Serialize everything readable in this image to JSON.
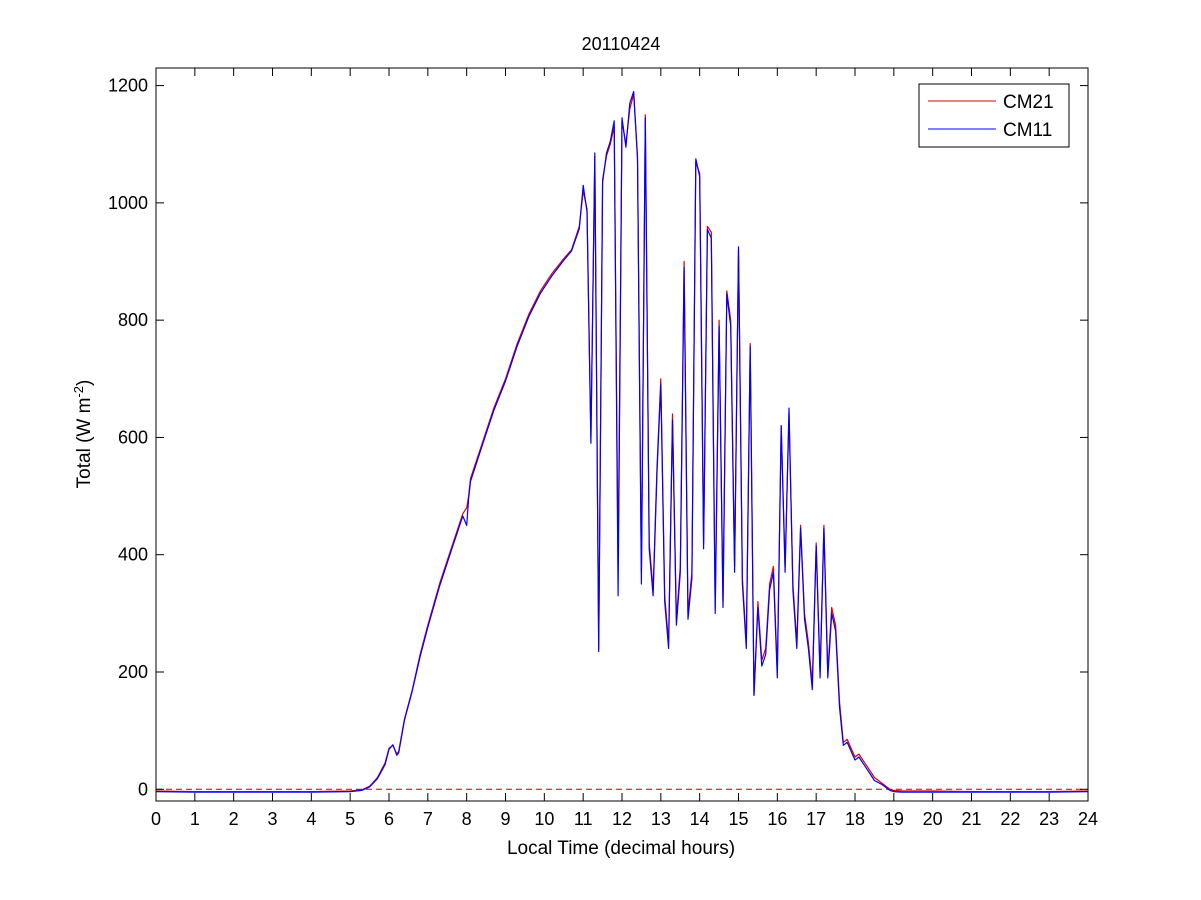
{
  "chart_data": {
    "type": "line",
    "title": "20110424",
    "xlabel": "Local Time (decimal hours)",
    "ylabel": "Total (W m",
    "ylabel_superscript": "-2",
    "ylabel_suffix": ")",
    "xlim": [
      0,
      24
    ],
    "ylim": [
      -20,
      1230
    ],
    "xticks": [
      0,
      1,
      2,
      3,
      4,
      5,
      6,
      7,
      8,
      9,
      10,
      11,
      12,
      13,
      14,
      15,
      16,
      17,
      18,
      19,
      20,
      21,
      22,
      23,
      24
    ],
    "yticks": [
      0,
      200,
      400,
      600,
      800,
      1000,
      1200
    ],
    "grid": false,
    "legend_position": "top-right",
    "zero_line": {
      "value": 0,
      "style": "dashed",
      "color": "#cc0000"
    },
    "series": [
      {
        "name": "CM21",
        "color": "#dd0000",
        "x": [
          0,
          1,
          2,
          3,
          4,
          5,
          5.3,
          5.5,
          5.7,
          5.9,
          6.0,
          6.1,
          6.2,
          6.25,
          6.4,
          6.6,
          6.8,
          7.0,
          7.3,
          7.6,
          7.9,
          8.0,
          8.05,
          8.1,
          8.4,
          8.7,
          9.0,
          9.3,
          9.6,
          9.9,
          10.2,
          10.5,
          10.7,
          10.9,
          11.0,
          11.1,
          11.2,
          11.3,
          11.4,
          11.5,
          11.6,
          11.7,
          11.8,
          11.9,
          12.0,
          12.1,
          12.2,
          12.3,
          12.4,
          12.5,
          12.6,
          12.7,
          12.8,
          12.9,
          13.0,
          13.1,
          13.2,
          13.3,
          13.4,
          13.5,
          13.6,
          13.7,
          13.8,
          13.9,
          14.0,
          14.1,
          14.2,
          14.3,
          14.4,
          14.5,
          14.6,
          14.7,
          14.8,
          14.9,
          15.0,
          15.1,
          15.2,
          15.3,
          15.4,
          15.5,
          15.6,
          15.7,
          15.8,
          15.9,
          16.0,
          16.1,
          16.2,
          16.3,
          16.4,
          16.5,
          16.6,
          16.7,
          16.8,
          16.9,
          17.0,
          17.1,
          17.2,
          17.3,
          17.4,
          17.5,
          17.6,
          17.7,
          17.8,
          17.9,
          18.0,
          18.1,
          18.2,
          18.3,
          18.5,
          18.7,
          18.9,
          19.0,
          19.2,
          20,
          21,
          22,
          23,
          24
        ],
        "y": [
          -3,
          -4,
          -4,
          -4,
          -4,
          -3,
          -1,
          5,
          20,
          45,
          70,
          75,
          60,
          65,
          120,
          170,
          230,
          280,
          350,
          410,
          470,
          480,
          500,
          530,
          590,
          650,
          700,
          760,
          810,
          850,
          880,
          905,
          920,
          960,
          1020,
          990,
          600,
          1080,
          240,
          1040,
          1080,
          1100,
          1130,
          380,
          1140,
          1100,
          1160,
          1185,
          1080,
          370,
          1150,
          420,
          340,
          550,
          700,
          330,
          250,
          640,
          290,
          380,
          900,
          300,
          370,
          1070,
          1050,
          420,
          960,
          950,
          310,
          800,
          320,
          850,
          800,
          380,
          920,
          360,
          250,
          760,
          160,
          320,
          220,
          240,
          350,
          380,
          200,
          620,
          380,
          640,
          350,
          250,
          450,
          300,
          250,
          180,
          420,
          200,
          450,
          200,
          310,
          280,
          150,
          80,
          85,
          70,
          55,
          60,
          50,
          40,
          20,
          10,
          0,
          -2,
          -3,
          -3,
          -4,
          -4,
          -4,
          -3
        ]
      },
      {
        "name": "CM11",
        "color": "#0000ff",
        "x": [
          0,
          1,
          2,
          3,
          4,
          5,
          5.3,
          5.5,
          5.7,
          5.9,
          6.0,
          6.1,
          6.2,
          6.25,
          6.4,
          6.6,
          6.8,
          7.0,
          7.3,
          7.6,
          7.9,
          8.0,
          8.05,
          8.1,
          8.4,
          8.7,
          9.0,
          9.3,
          9.6,
          9.9,
          10.2,
          10.5,
          10.7,
          10.9,
          11.0,
          11.1,
          11.2,
          11.3,
          11.4,
          11.5,
          11.6,
          11.7,
          11.8,
          11.9,
          12.0,
          12.1,
          12.2,
          12.3,
          12.4,
          12.5,
          12.6,
          12.7,
          12.8,
          12.9,
          13.0,
          13.1,
          13.2,
          13.3,
          13.4,
          13.5,
          13.6,
          13.7,
          13.8,
          13.9,
          14.0,
          14.1,
          14.2,
          14.3,
          14.4,
          14.5,
          14.6,
          14.7,
          14.8,
          14.9,
          15.0,
          15.1,
          15.2,
          15.3,
          15.4,
          15.5,
          15.6,
          15.7,
          15.8,
          15.9,
          16.0,
          16.1,
          16.2,
          16.3,
          16.4,
          16.5,
          16.6,
          16.7,
          16.8,
          16.9,
          17.0,
          17.1,
          17.2,
          17.3,
          17.4,
          17.5,
          17.6,
          17.7,
          17.8,
          17.9,
          18.0,
          18.1,
          18.2,
          18.3,
          18.5,
          18.7,
          18.9,
          19.0,
          19.2,
          20,
          21,
          22,
          23,
          24
        ],
        "y": [
          -4,
          -5,
          -5,
          -5,
          -5,
          -4,
          -2,
          4,
          18,
          42,
          68,
          76,
          58,
          62,
          118,
          168,
          226,
          276,
          346,
          406,
          466,
          450,
          495,
          525,
          586,
          646,
          696,
          756,
          806,
          846,
          876,
          902,
          918,
          956,
          1030,
          985,
          590,
          1085,
          235,
          1035,
          1085,
          1105,
          1140,
          330,
          1145,
          1095,
          1170,
          1190,
          1075,
          350,
          1145,
          410,
          330,
          540,
          690,
          320,
          240,
          630,
          280,
          370,
          890,
          290,
          360,
          1075,
          1045,
          410,
          955,
          940,
          300,
          790,
          310,
          845,
          790,
          370,
          925,
          350,
          240,
          755,
          160,
          310,
          210,
          230,
          340,
          370,
          190,
          620,
          370,
          650,
          340,
          240,
          445,
          290,
          240,
          170,
          415,
          190,
          445,
          190,
          300,
          270,
          140,
          75,
          80,
          65,
          50,
          55,
          45,
          35,
          15,
          8,
          -2,
          -4,
          -5,
          -5,
          -5,
          -5,
          -5,
          -4
        ]
      }
    ]
  }
}
